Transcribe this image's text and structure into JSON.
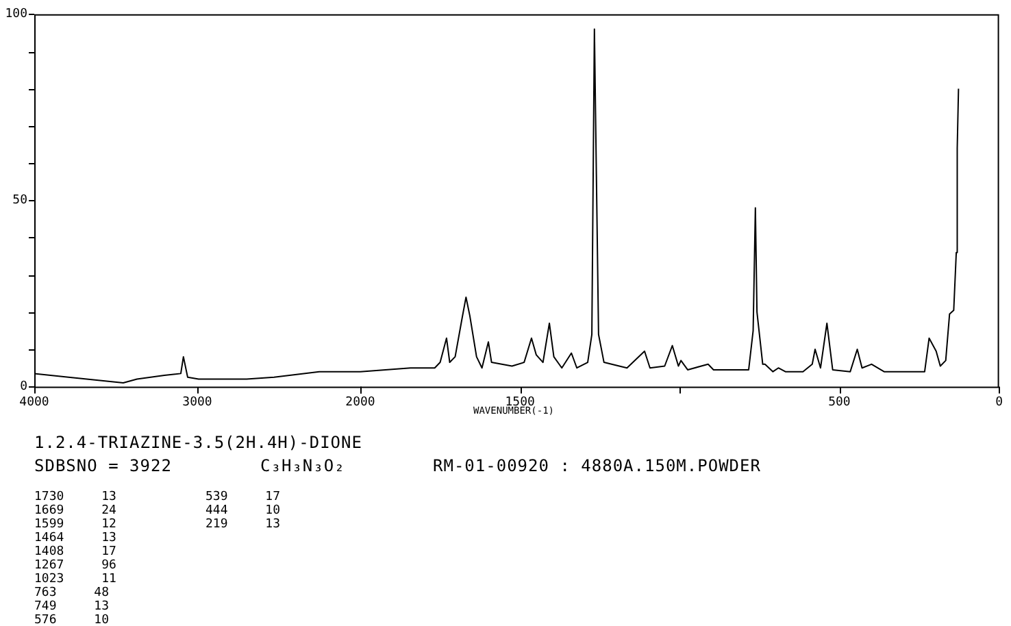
{
  "chart_data": [
    {
      "type": "line",
      "title": "1.2.4-TRIAZINE-3.5(2H.4H)-DIONE",
      "xlim": [
        4000,
        2000
      ],
      "xticks": [
        4000,
        3000,
        2000
      ],
      "ylim": [
        0,
        100
      ],
      "yticks": [
        0,
        {
          "value": 10,
          "label": null
        },
        {
          "value": 20,
          "label": null
        },
        {
          "value": 30,
          "label": null
        },
        {
          "value": 40,
          "label": null
        },
        50,
        {
          "value": 60,
          "label": null
        },
        {
          "value": 70,
          "label": null
        },
        {
          "value": 80,
          "label": null
        },
        {
          "value": 90,
          "label": null
        },
        100
      ],
      "grid": false,
      "marker": "none",
      "line_style": "solid",
      "x": [
        4000,
        3790,
        3454,
        3370,
        3202,
        3101,
        3085,
        3059,
        2992,
        2697,
        2529,
        2252,
        2109,
        2000
      ],
      "series": [
        {
          "color": "#000000",
          "values": [
            3.5,
            2.5,
            1,
            2,
            3,
            3.5,
            8,
            2.5,
            2,
            2,
            2.5,
            4,
            4,
            4
          ]
        }
      ],
      "annotations": [
        "SDBSNO = 3922",
        "C₃H₃N₃O₂",
        "RM-01-00920 : 4880A.150M.POWDER",
        "1730 13",
        "1669 24",
        "1599 12",
        "1464 13",
        "1408 17",
        "1267 96",
        "1023 11",
        "763 48",
        "749 13",
        "576 10",
        "539 17",
        "444 10",
        "219 13"
      ]
    },
    {
      "type": "line",
      "xlabel": "WAVENUMBER(-1)",
      "xlim": [
        2000,
        0
      ],
      "xticks": [
        {
          "value": 2000,
          "label": null
        },
        1500,
        {
          "value": 1000,
          "label": null
        },
        500,
        0
      ],
      "ylim": [
        0,
        100
      ],
      "tick_labels": "x",
      "grid": false,
      "marker": "none",
      "line_style": "solid",
      "x": [
        2000,
        1843,
        1767,
        1750,
        1730,
        1720,
        1703,
        1682,
        1669,
        1657,
        1636,
        1619,
        1599,
        1589,
        1525,
        1487,
        1464,
        1449,
        1428,
        1408,
        1394,
        1369,
        1339,
        1322,
        1288,
        1275,
        1267,
        1254,
        1237,
        1165,
        1110,
        1093,
        1047,
        1023,
        1004,
        996,
        975,
        911,
        894,
        784,
        770,
        763,
        758,
        749,
        740,
        733,
        708,
        691,
        669,
        614,
        585,
        576,
        559,
        539,
        521,
        466,
        444,
        429,
        399,
        360,
        297,
        233,
        219,
        197,
        184,
        167,
        155,
        142,
        134,
        131,
        127
      ],
      "series": [
        {
          "color": "#000000",
          "values": [
            4,
            5,
            5,
            6.5,
            13,
            6.5,
            8,
            18,
            24,
            19,
            8,
            5,
            12,
            6.5,
            5.5,
            6.5,
            13,
            8.5,
            6.5,
            17,
            8,
            5,
            9,
            5,
            6.5,
            14,
            96,
            14,
            6.5,
            5,
            9.5,
            5,
            5.5,
            11,
            5.5,
            7,
            4.5,
            6,
            4.5,
            4.5,
            15,
            48,
            20,
            13,
            6,
            6,
            4,
            5,
            4,
            4,
            6,
            10,
            5,
            17,
            4.5,
            4,
            10,
            5,
            6,
            4,
            4,
            4,
            13,
            9.5,
            5.5,
            7,
            19.5,
            20.5,
            36,
            64,
            80
          ]
        }
      ]
    }
  ]
}
